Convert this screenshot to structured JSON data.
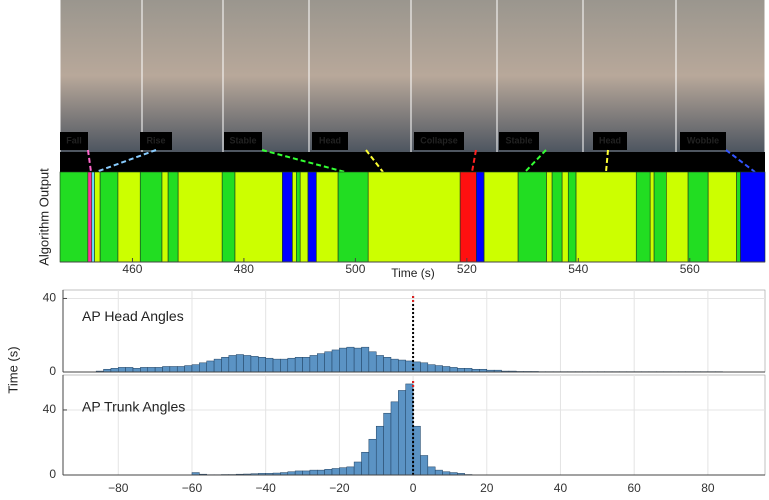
{
  "frames": [
    {
      "label": "Fall",
      "color": "#ff66cc"
    },
    {
      "label": "Rise",
      "color": "#88ccff"
    },
    {
      "label": "Stable",
      "color": "#33ff33"
    },
    {
      "label": "Head",
      "color": "#ffff33"
    },
    {
      "label": "Collapse",
      "color": "#ff2222"
    },
    {
      "label": "Stable",
      "color": "#33ff33"
    },
    {
      "label": "Head",
      "color": "#ffff33"
    },
    {
      "label": "Wobble",
      "color": "#3355ff"
    }
  ],
  "chart_data": [
    {
      "type": "state-strip",
      "x_label": "Time (s)",
      "y_label": "Algorithm Output",
      "xlim": [
        447,
        573.5
      ],
      "xticks": [
        460,
        480,
        500,
        520,
        540,
        560
      ],
      "boundaries": [
        447,
        452,
        452.7,
        453.2,
        454.2,
        457.4,
        461.4,
        465.3,
        466.4,
        468.2,
        476.1,
        478.4,
        486.9,
        488.7,
        489.4,
        490.1,
        491.5,
        493,
        496.9,
        502.3,
        518.8,
        521.7,
        523.1,
        529.2,
        534.3,
        535.3,
        537.1,
        538.2,
        539.6,
        550.4,
        552.9,
        553.6,
        555.8,
        559.7,
        563.3,
        568.4,
        569.1,
        573.5
      ],
      "colors": [
        "#22dd22",
        "#ff3399",
        "#66ddff",
        "#ccff00",
        "#22dd22",
        "#ccff00",
        "#22dd22",
        "#ccff00",
        "#22dd22",
        "#ccff00",
        "#22dd22",
        "#ccff00",
        "#0000ff",
        "#ccff00",
        "#22dd22",
        "#ccff00",
        "#0000ff",
        "#ccff00",
        "#22dd22",
        "#ccff00",
        "#ff1010",
        "#0000ff",
        "#ccff00",
        "#22dd22",
        "#ccff00",
        "#22dd22",
        "#ccff00",
        "#22dd22",
        "#ccff00",
        "#22dd22",
        "#ccff00",
        "#22dd22",
        "#ccff00",
        "#22dd22",
        "#ccff00",
        "#22dd22",
        "#0000ff"
      ]
    },
    {
      "type": "histogram",
      "title": "AP Head Angles",
      "y_label": "Time (s)",
      "color": "#5b93c4",
      "grid": true,
      "show_xtick_labels": false,
      "reference_x": 0,
      "xlim": [
        -95,
        95.5
      ],
      "ylim": [
        0,
        44.6
      ],
      "yticks": [
        0,
        40
      ],
      "xticks": [
        {
          "value": -80,
          "label": "−80"
        },
        {
          "value": -60,
          "label": "−60"
        },
        {
          "value": -40,
          "label": "−40"
        },
        {
          "value": -20,
          "label": "−20"
        },
        0,
        20,
        40,
        60,
        80
      ],
      "bins": [
        -90,
        -88,
        -86,
        -84,
        -82,
        -80,
        -78,
        -76,
        -74,
        -72,
        -70,
        -68,
        -66,
        -64,
        -62,
        -60,
        -58,
        -56,
        -54,
        -52,
        -50,
        -48,
        -46,
        -44,
        -42,
        -40,
        -38,
        -36,
        -34,
        -32,
        -30,
        -28,
        -26,
        -24,
        -22,
        -20,
        -18,
        -16,
        -14,
        -12,
        -10,
        -8,
        -6,
        -4,
        -2,
        0,
        2,
        4,
        6,
        8,
        10,
        12,
        14,
        16,
        18,
        20,
        22,
        24,
        26,
        28,
        30,
        32,
        34,
        36,
        38,
        40,
        42,
        44,
        46,
        48,
        50,
        52,
        54,
        56,
        58,
        60,
        62,
        64,
        66,
        68,
        70,
        72,
        74,
        76,
        78,
        80,
        82,
        84,
        86,
        88,
        90
      ],
      "values": [
        0,
        0,
        0.5,
        1.5,
        2,
        2.5,
        2.5,
        2,
        2.5,
        2.5,
        2.5,
        3,
        3,
        3,
        3.5,
        4,
        5,
        6,
        7,
        8,
        9,
        9.5,
        9,
        8.5,
        8,
        7.5,
        7,
        7,
        7.5,
        8,
        8,
        9,
        10,
        11,
        12,
        13,
        13.5,
        13,
        13.5,
        11,
        9,
        8,
        7,
        6.5,
        6,
        5.5,
        5,
        4,
        3.5,
        3,
        2.5,
        2,
        2,
        1.5,
        1.5,
        1,
        1,
        0.5,
        0.5,
        0.3,
        0.3,
        0.3,
        0.2,
        0.2,
        0.2,
        0.2,
        0.2,
        0.2,
        0.2,
        0.2,
        0.2,
        0.2,
        0.2,
        0.2,
        0.2,
        0.2,
        0.2,
        0.2,
        0.2,
        0.2,
        0.2,
        0.2,
        0.2,
        0.2,
        0.2,
        0.2,
        0.2,
        0.1,
        0,
        0
      ]
    },
    {
      "type": "histogram",
      "title": "AP Trunk Angles",
      "color": "#5b93c4",
      "grid": true,
      "show_xtick_labels": true,
      "reference_x": 0,
      "xlim": [
        -95,
        95.5
      ],
      "ylim": [
        0,
        61.5
      ],
      "yticks": [
        0,
        40
      ],
      "xticks": [
        {
          "value": -80,
          "label": "−80"
        },
        {
          "value": -60,
          "label": "−60"
        },
        {
          "value": -40,
          "label": "−40"
        },
        {
          "value": -20,
          "label": "−20"
        },
        0,
        20,
        40,
        60,
        80
      ],
      "bins": [
        -90,
        -88,
        -86,
        -84,
        -82,
        -80,
        -78,
        -76,
        -74,
        -72,
        -70,
        -68,
        -66,
        -64,
        -62,
        -60,
        -58,
        -56,
        -54,
        -52,
        -50,
        -48,
        -46,
        -44,
        -42,
        -40,
        -38,
        -36,
        -34,
        -32,
        -30,
        -28,
        -26,
        -24,
        -22,
        -20,
        -18,
        -16,
        -14,
        -12,
        -10,
        -8,
        -6,
        -4,
        -2,
        0,
        2,
        4,
        6,
        8,
        10,
        12,
        14,
        16,
        18,
        20,
        22,
        24,
        26,
        28,
        30,
        32,
        34,
        36,
        38,
        40,
        42,
        44,
        46,
        48,
        50,
        52,
        54,
        56,
        58,
        60,
        62,
        64,
        66,
        68,
        70,
        72,
        74,
        76,
        78,
        80,
        82,
        84,
        86,
        88,
        90
      ],
      "values": [
        0,
        0,
        0,
        0,
        0,
        0,
        0,
        0,
        0,
        0,
        0,
        0,
        0,
        0,
        0,
        1.5,
        0.5,
        0.2,
        0.2,
        0.3,
        0.3,
        0.5,
        0.6,
        0.8,
        1,
        1,
        1.2,
        1.5,
        2,
        2.5,
        2.5,
        3,
        3,
        3.5,
        4,
        4.5,
        5,
        8,
        14,
        22,
        30,
        38,
        45,
        52,
        56,
        30,
        12,
        5,
        3,
        2,
        1.5,
        1,
        0.3,
        0,
        0,
        0,
        0,
        0,
        0,
        0,
        0,
        0,
        0,
        0,
        0,
        0,
        0,
        0,
        0,
        0,
        0,
        0,
        0,
        0,
        0,
        0,
        0,
        0,
        0,
        0,
        0,
        0,
        0,
        0,
        0,
        0,
        0,
        0,
        0,
        0
      ]
    }
  ]
}
